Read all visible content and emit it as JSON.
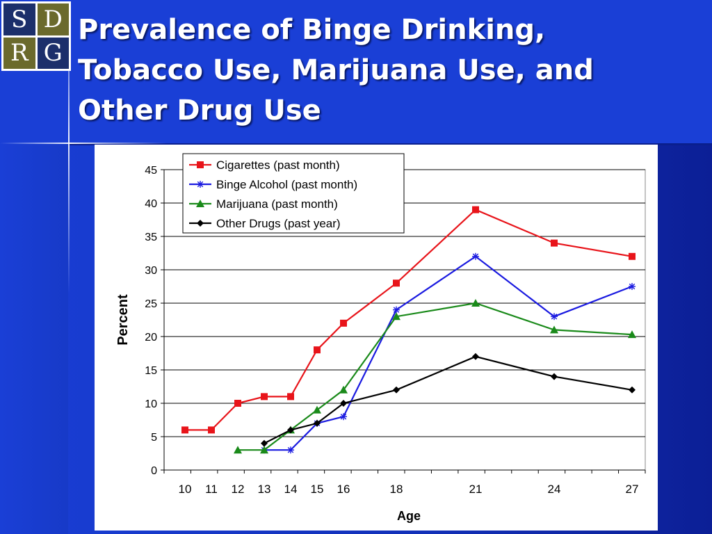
{
  "slide": {
    "title_lines": [
      "Prevalence of Binge Drinking,",
      "Tobacco Use, Marijuana Use, and",
      "Other Drug Use"
    ],
    "logo": {
      "letters": [
        "S",
        "D",
        "R",
        "G"
      ]
    },
    "colors": {
      "background": "#1a3fd6",
      "logo_navy": "#1c2f6b",
      "logo_olive": "#6b6a2c"
    }
  },
  "chart_data": {
    "type": "line",
    "xlabel": "Age",
    "ylabel": "Percent",
    "x_ticks": [
      10,
      11,
      12,
      13,
      14,
      15,
      16,
      18,
      21,
      24,
      27
    ],
    "xlim": [
      10,
      27
    ],
    "ylim": [
      0,
      45
    ],
    "y_ticks": [
      0,
      5,
      10,
      15,
      20,
      25,
      30,
      35,
      40,
      45
    ],
    "grid": true,
    "legend_position": "top-left",
    "series": [
      {
        "name": "Cigarettes (past month)",
        "color": "#e8141a",
        "marker": "square",
        "points": [
          [
            10,
            6
          ],
          [
            11,
            6
          ],
          [
            12,
            10
          ],
          [
            13,
            11
          ],
          [
            14,
            11
          ],
          [
            15,
            18
          ],
          [
            16,
            22
          ],
          [
            18,
            28
          ],
          [
            21,
            39
          ],
          [
            24,
            34
          ],
          [
            27,
            32
          ]
        ]
      },
      {
        "name": "Binge Alcohol (past month)",
        "color": "#1a1ae0",
        "marker": "asterisk",
        "points": [
          [
            13,
            3
          ],
          [
            14,
            3
          ],
          [
            15,
            7
          ],
          [
            16,
            8
          ],
          [
            18,
            24
          ],
          [
            21,
            32
          ],
          [
            24,
            23
          ],
          [
            27,
            27.5
          ]
        ]
      },
      {
        "name": "Marijuana (past month)",
        "color": "#1a8a1a",
        "marker": "triangle",
        "points": [
          [
            12,
            3
          ],
          [
            13,
            3
          ],
          [
            14,
            6
          ],
          [
            15,
            9
          ],
          [
            16,
            12
          ],
          [
            18,
            23
          ],
          [
            21,
            25
          ],
          [
            24,
            21
          ],
          [
            27,
            20.3
          ]
        ]
      },
      {
        "name": "Other Drugs (past year)",
        "color": "#000000",
        "marker": "diamond",
        "points": [
          [
            13,
            4
          ],
          [
            14,
            6
          ],
          [
            15,
            7
          ],
          [
            16,
            10
          ],
          [
            18,
            12
          ],
          [
            21,
            17
          ],
          [
            24,
            14
          ],
          [
            27,
            12
          ]
        ]
      }
    ]
  }
}
